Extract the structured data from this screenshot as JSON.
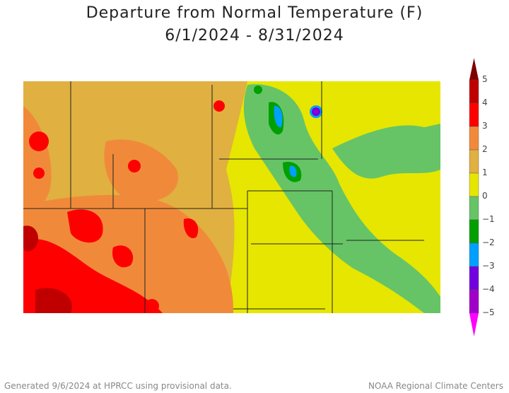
{
  "title_line1": "Departure from Normal Temperature (F)",
  "title_line2": "6/1/2024 - 8/31/2024",
  "footer_left": "Generated 9/6/2024 at HPRCC using provisional data.",
  "footer_right": "NOAA Regional Climate Centers",
  "legend": {
    "ticks": [
      "5",
      "4",
      "3",
      "2",
      "1",
      "0",
      "−1",
      "−2",
      "−3",
      "−4",
      "−5"
    ],
    "colors": [
      "#800000",
      "#c00000",
      "#ff0000",
      "#f08a3a",
      "#e0b040",
      "#e6e600",
      "#66c466",
      "#00a000",
      "#00a0ff",
      "#7000e0",
      "#a000c8",
      "#ff00ff"
    ]
  }
}
